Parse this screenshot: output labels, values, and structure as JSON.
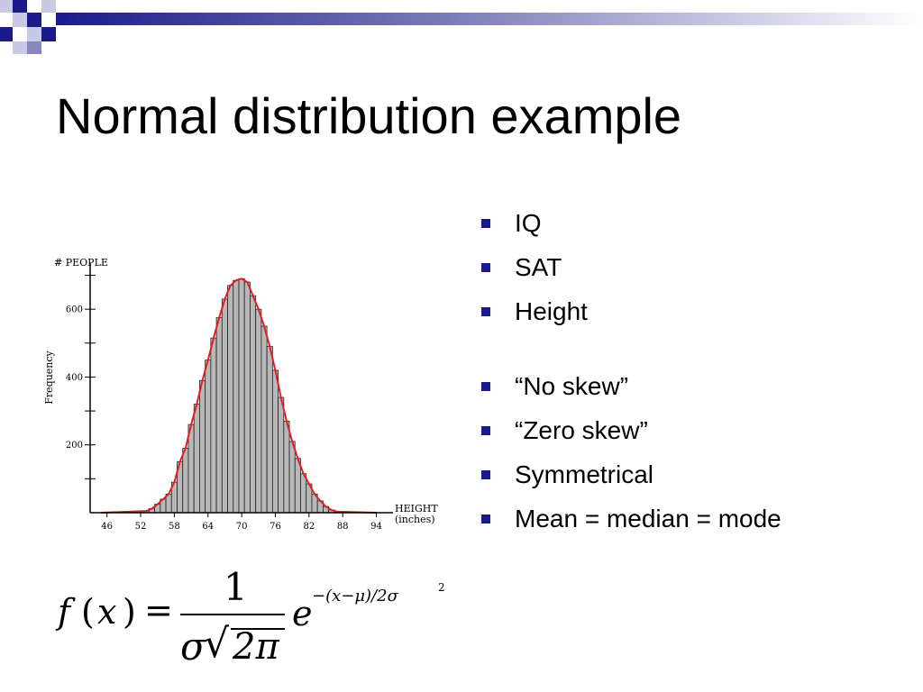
{
  "slide": {
    "title": "Normal distribution example",
    "bullets": [
      "IQ",
      "SAT",
      "Height",
      "“No skew”",
      "“Zero skew”",
      "Symmetrical",
      "Mean = median = mode"
    ],
    "accent_color": "#1a1a8c"
  },
  "formula": {
    "lhs_f": "f",
    "lhs_open": "(",
    "lhs_x": "x",
    "lhs_close": ")",
    "equals": "=",
    "numerator": "1",
    "denominator_sigma": "σ",
    "denominator_root": "√",
    "denominator_two_pi": "2π",
    "base": "e",
    "exponent": "−(x−μ)/2σ",
    "exponent_power": "2"
  },
  "chart_data": {
    "type": "bar",
    "title": "",
    "ylabel": "Frequency",
    "yunit_label": "# PEOPLE",
    "xlabel_line1": "HEIGHT",
    "xlabel_line2": "(inches)",
    "xticks": [
      "46",
      "52",
      "58",
      "64",
      "70",
      "76",
      "82",
      "88",
      "94"
    ],
    "xtick_values": [
      46,
      52,
      58,
      64,
      70,
      76,
      82,
      88,
      94
    ],
    "yticks": [
      "200",
      "400",
      "600"
    ],
    "ytick_values": [
      200,
      400,
      600
    ],
    "xlim": [
      43,
      96
    ],
    "ylim": [
      0,
      720
    ],
    "bin_width": 1,
    "x": [
      53,
      54,
      55,
      56,
      57,
      58,
      59,
      60,
      61,
      62,
      63,
      64,
      65,
      66,
      67,
      68,
      69,
      70,
      71,
      72,
      73,
      74,
      75,
      76,
      77,
      78,
      79,
      80,
      81,
      82,
      83,
      84,
      85,
      86,
      87
    ],
    "values": [
      5,
      12,
      25,
      40,
      55,
      90,
      150,
      190,
      260,
      320,
      390,
      450,
      515,
      575,
      630,
      670,
      685,
      690,
      680,
      640,
      600,
      550,
      490,
      420,
      340,
      270,
      210,
      160,
      115,
      85,
      55,
      35,
      18,
      8,
      3
    ],
    "curve_color": "#e02020",
    "bar_color": "#b8b8b8",
    "grid": false
  }
}
